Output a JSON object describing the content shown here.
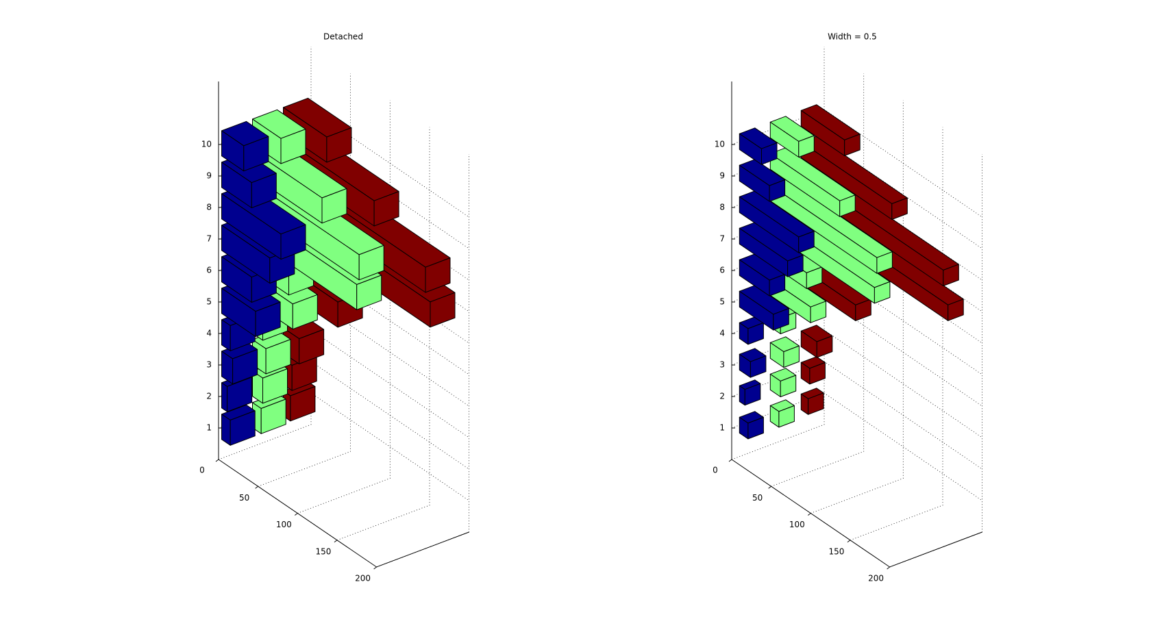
{
  "chart_data": [
    {
      "type": "bar3h",
      "title": "Detached",
      "bar_width": 0.8,
      "categories": [
        1,
        2,
        3,
        4,
        5,
        6,
        7,
        8,
        9,
        10
      ],
      "series": [
        {
          "color": "#00008f",
          "values": [
            11,
            7,
            14,
            11,
            43,
            38,
            61,
            75,
            38,
            28
          ]
        },
        {
          "color": "#80ff80",
          "values": [
            11,
            13,
            17,
            13,
            51,
            46,
            132,
            135,
            88,
            36
          ]
        },
        {
          "color": "#800000",
          "values": [
            9,
            11,
            20,
            9,
            69,
            76,
            186,
            180,
            115,
            55
          ]
        }
      ],
      "ylim": [
        0,
        200
      ],
      "yticks": [
        0,
        50,
        100,
        150,
        200
      ],
      "grid": true
    },
    {
      "type": "bar3h",
      "title": "Width = 0.5",
      "bar_width": 0.5,
      "categories": [
        1,
        2,
        3,
        4,
        5,
        6,
        7,
        8,
        9,
        10
      ],
      "series": [
        {
          "color": "#00008f",
          "values": [
            11,
            7,
            14,
            11,
            43,
            38,
            61,
            75,
            38,
            28
          ]
        },
        {
          "color": "#80ff80",
          "values": [
            11,
            13,
            17,
            13,
            51,
            46,
            132,
            135,
            88,
            36
          ]
        },
        {
          "color": "#800000",
          "values": [
            9,
            11,
            20,
            9,
            69,
            76,
            186,
            180,
            115,
            55
          ]
        }
      ],
      "ylim": [
        0,
        200
      ],
      "yticks": [
        0,
        50,
        100,
        150,
        200
      ],
      "grid": true
    }
  ]
}
